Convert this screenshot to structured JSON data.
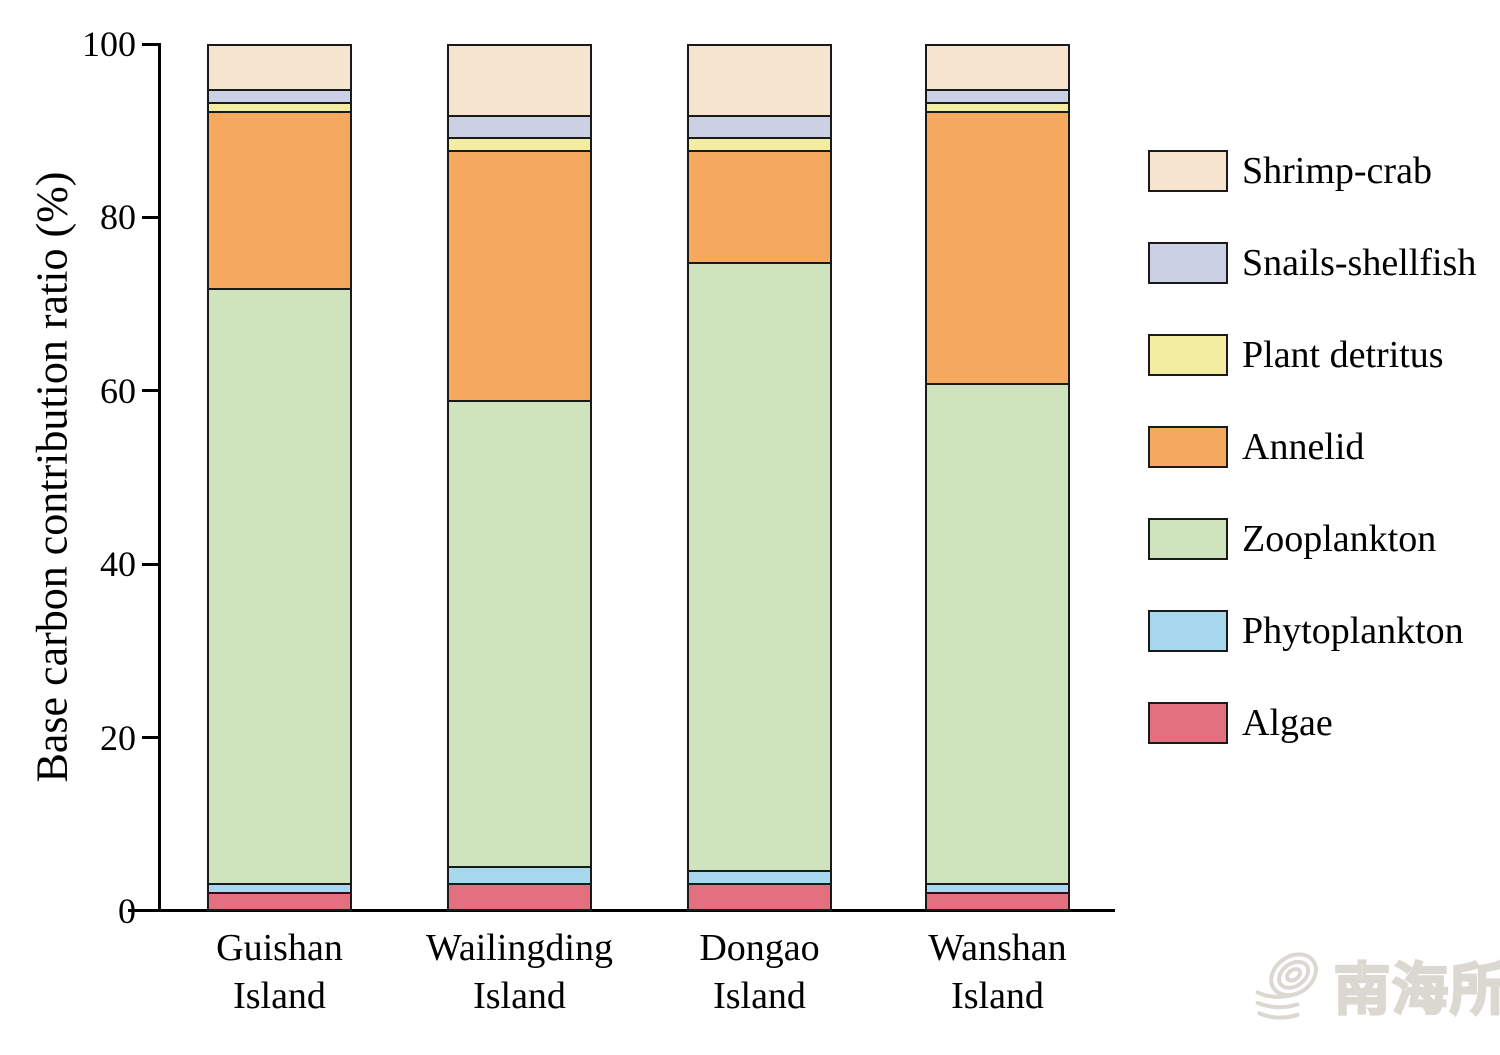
{
  "figure": {
    "background": "#ffffff",
    "watermark": {
      "text": "南海所"
    }
  },
  "chart_data": {
    "type": "bar",
    "stacked": true,
    "title": "",
    "xlabel": "",
    "ylabel": "Base carbon contribution ratio (%)",
    "ylim": [
      0,
      100
    ],
    "yticks": [
      0,
      20,
      40,
      60,
      80,
      100
    ],
    "grid": false,
    "legend_position": "right",
    "bar_border_color": "#1a1a1a",
    "categories": [
      {
        "line1": "Guishan",
        "line2": "Island"
      },
      {
        "line1": "Wailingding",
        "line2": "Island"
      },
      {
        "line1": "Dongao",
        "line2": "Island"
      },
      {
        "line1": "Wanshan",
        "line2": "Island"
      }
    ],
    "series": [
      {
        "name": "Algae",
        "color": "#E2707F",
        "values": [
          2,
          3,
          3,
          2
        ]
      },
      {
        "name": "Phytoplankton",
        "color": "#A8D8EE",
        "values": [
          1,
          2,
          1.5,
          1
        ]
      },
      {
        "name": "Zooplankton",
        "color": "#CFE3BC",
        "values": [
          69,
          54,
          70.5,
          58
        ]
      },
      {
        "name": "Annelid",
        "color": "#F5A95E",
        "values": [
          20.5,
          29,
          13,
          31.5
        ]
      },
      {
        "name": "Plant detritus",
        "color": "#F3EDA2",
        "values": [
          1,
          1.5,
          1.5,
          1
        ]
      },
      {
        "name": "Snails-shellfish",
        "color": "#CCD0E4",
        "values": [
          1.5,
          2.5,
          2.5,
          1.5
        ]
      },
      {
        "name": "Shrimp-crab",
        "color": "#F7E4CE",
        "values": [
          5,
          8,
          8,
          5
        ]
      }
    ],
    "legend_order_top_to_bottom": [
      "Shrimp-crab",
      "Snails-shellfish",
      "Plant detritus",
      "Annelid",
      "Zooplankton",
      "Phytoplankton",
      "Algae"
    ]
  }
}
